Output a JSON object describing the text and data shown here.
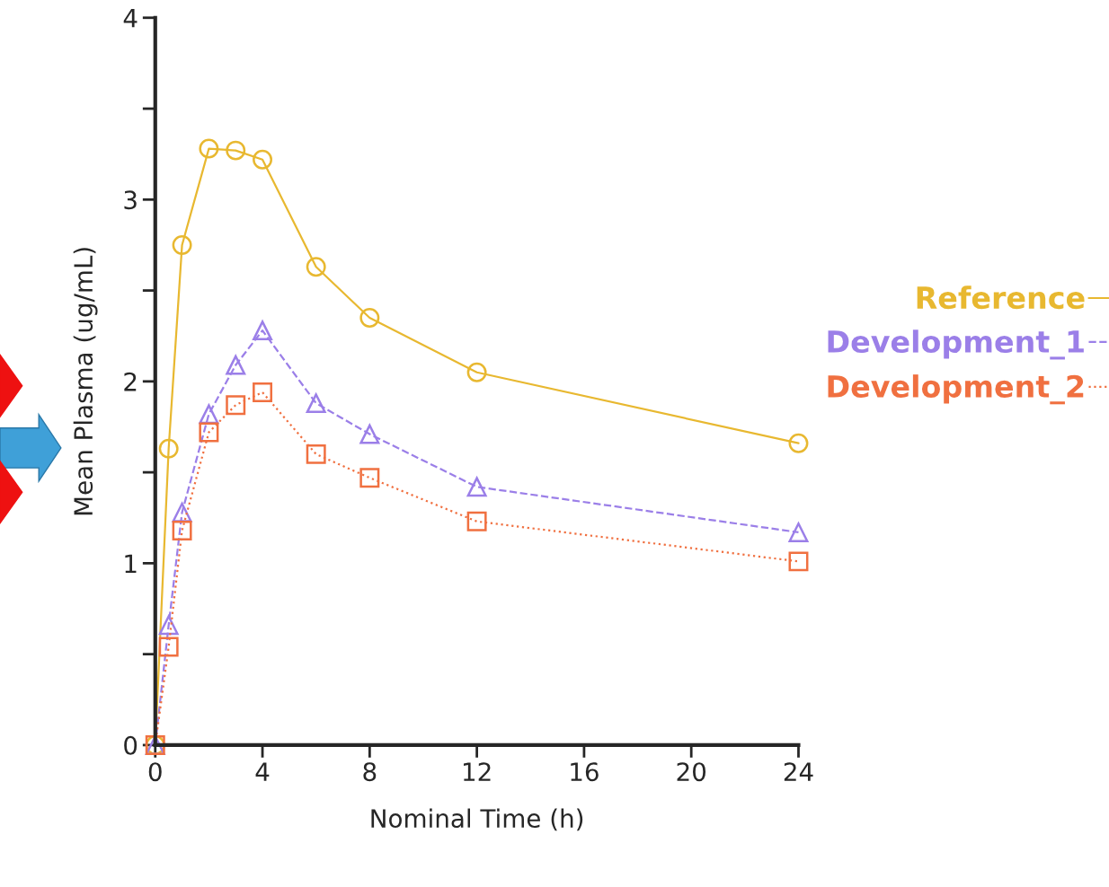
{
  "chart_data": {
    "type": "line",
    "xlabel": "Nominal Time (h)",
    "ylabel": "Mean Plasma (ug/mL)",
    "xlim": [
      0,
      24
    ],
    "ylim": [
      0,
      4
    ],
    "xticks": [
      0,
      4,
      8,
      12,
      16,
      20,
      24
    ],
    "yticks": [
      0,
      {
        "value": 0.5,
        "label": null
      },
      1,
      {
        "value": 1.5,
        "label": null
      },
      2,
      {
        "value": 2.5,
        "label": null
      },
      3,
      {
        "value": 3.5,
        "label": null
      },
      4
    ],
    "grid": false,
    "legend": "right",
    "series": [
      {
        "name": "Reference",
        "color": "#e8b830",
        "marker": "circle",
        "line_style": "solid",
        "x": [
          0,
          0.5,
          1,
          2,
          3,
          4,
          6,
          8,
          12,
          24
        ],
        "values": [
          0,
          1.63,
          2.75,
          3.28,
          3.27,
          3.22,
          2.63,
          2.35,
          2.05,
          1.66
        ]
      },
      {
        "name": "Development_1",
        "color": "#9b7fe8",
        "marker": "triangle",
        "line_style": "dashed",
        "x": [
          0,
          0.5,
          1,
          2,
          3,
          4,
          6,
          8,
          12,
          24
        ],
        "values": [
          0,
          0.66,
          1.28,
          1.82,
          2.09,
          2.28,
          1.88,
          1.71,
          1.42,
          1.17
        ]
      },
      {
        "name": "Development_2",
        "color": "#f07040",
        "marker": "square",
        "line_style": "dotted",
        "x": [
          0,
          0.5,
          1,
          2,
          3,
          4,
          6,
          8,
          12,
          24
        ],
        "values": [
          0,
          0.54,
          1.18,
          1.72,
          1.87,
          1.94,
          1.6,
          1.47,
          1.23,
          1.01
        ]
      }
    ]
  }
}
